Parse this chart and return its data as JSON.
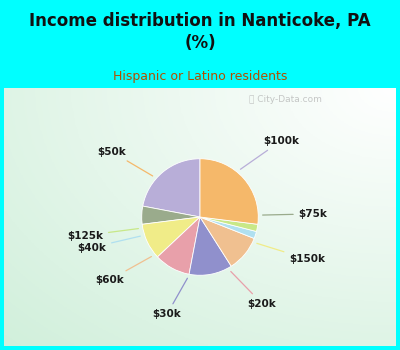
{
  "title": "Income distribution in Nanticoke, PA\n(%)",
  "subtitle": "Hispanic or Latino residents",
  "title_color": "#111111",
  "subtitle_color": "#b05000",
  "background_top": "#00ffff",
  "labels": [
    "$100k",
    "$75k",
    "$150k",
    "$20k",
    "$30k",
    "$60k",
    "$40k",
    "$125k",
    "$50k"
  ],
  "values": [
    22,
    5,
    10,
    10,
    12,
    10,
    2,
    2,
    27
  ],
  "colors": [
    "#b8aed8",
    "#9aab8c",
    "#f0ec88",
    "#e8a0aa",
    "#9090cc",
    "#f0c090",
    "#b0e0f0",
    "#c8e888",
    "#f5b86a"
  ],
  "startangle": 90,
  "watermark": "City-Data.com"
}
